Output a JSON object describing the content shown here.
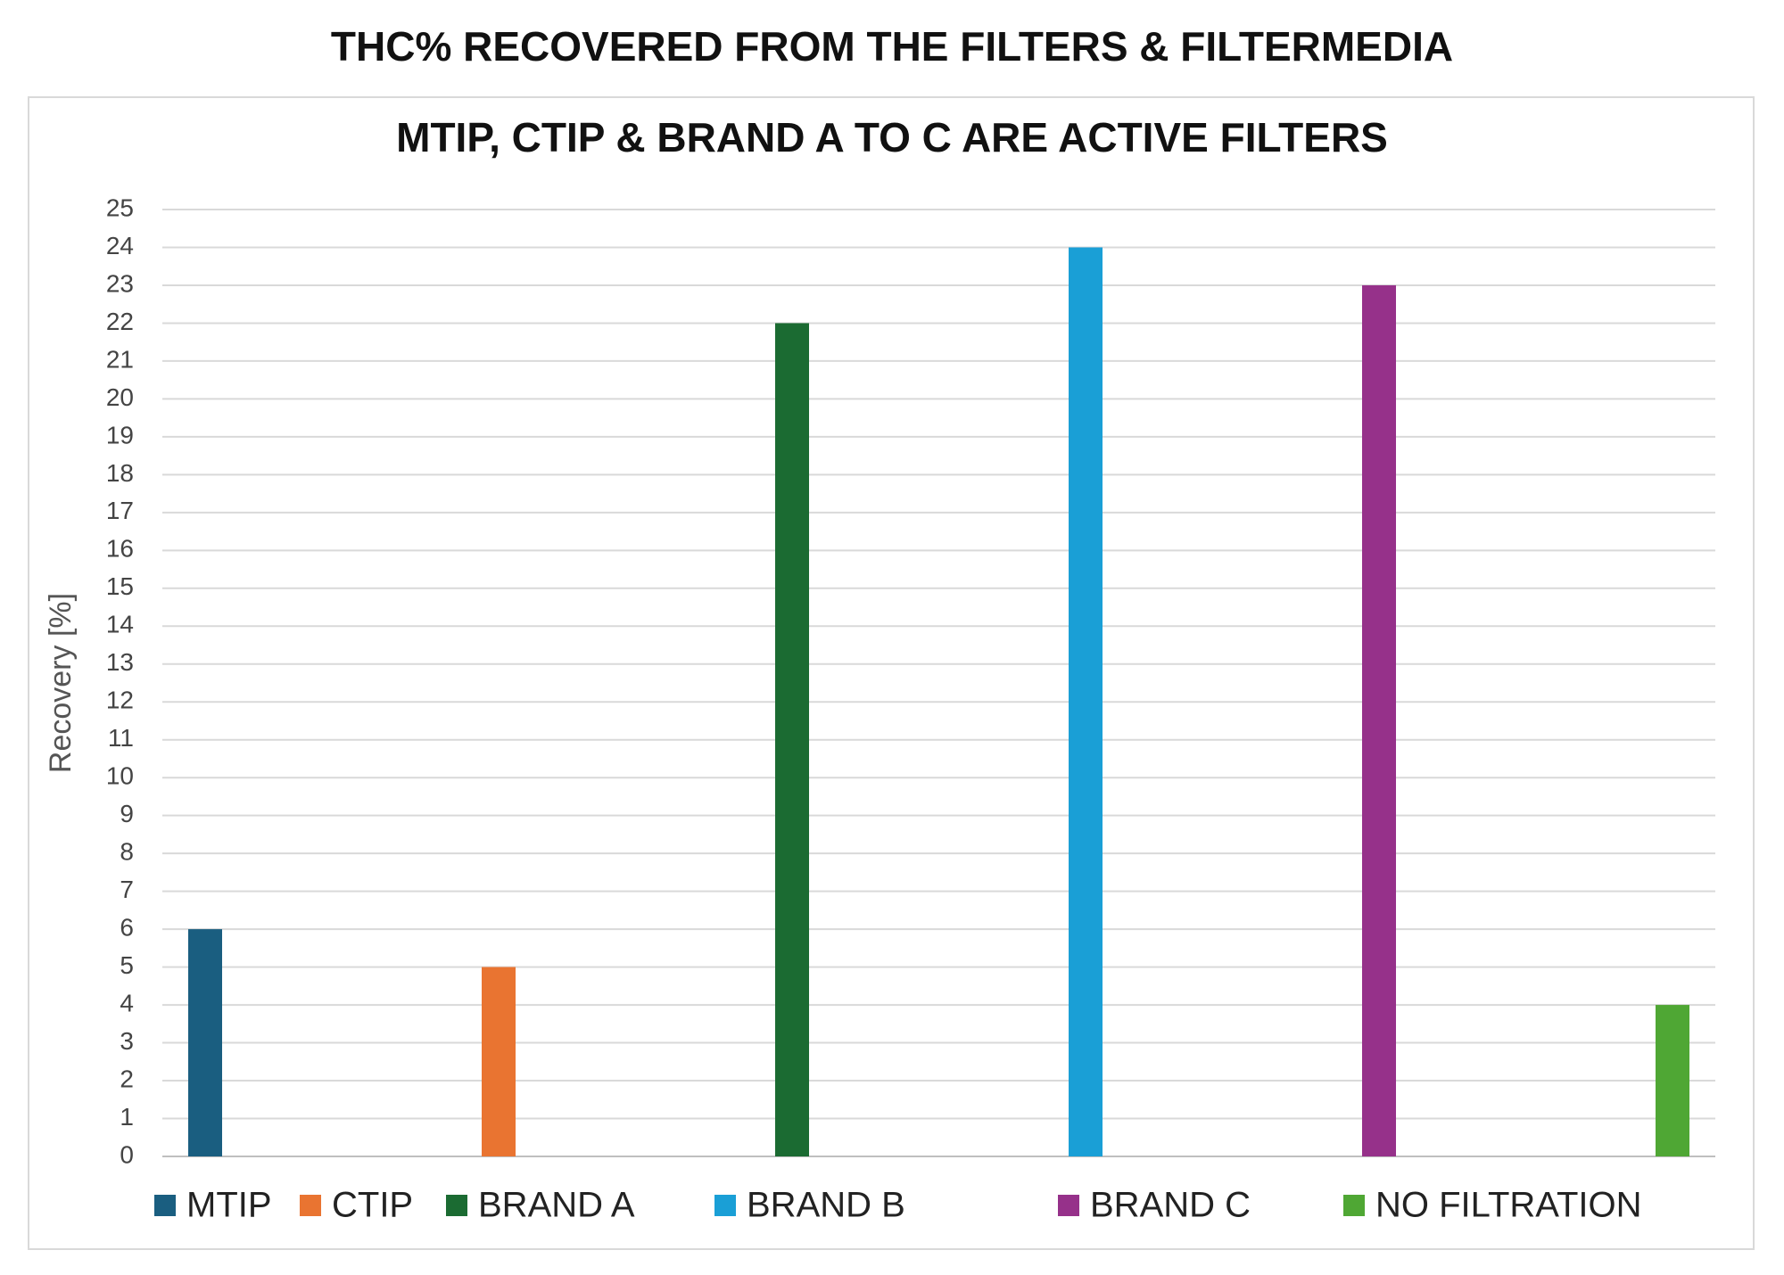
{
  "chart_data": {
    "type": "bar",
    "title": "THC% RECOVERED FROM THE FILTERS & FILTERMEDIA",
    "subtitle": "MTIP, CTIP & BRAND A TO C ARE ACTIVE FILTERS",
    "y_label": "Recovery [%]",
    "series": [
      {
        "name": "MTIP",
        "color": "#1a5e80",
        "values": [
          6
        ]
      },
      {
        "name": "CTIP",
        "color": "#e97431",
        "values": [
          5
        ]
      },
      {
        "name": "BRAND A",
        "color": "#1b6b32",
        "values": [
          22
        ]
      },
      {
        "name": "BRAND B",
        "color": "#1a9fd6",
        "values": [
          24
        ]
      },
      {
        "name": "BRAND C",
        "color": "#96318a",
        "values": [
          23
        ]
      },
      {
        "name": "NO FILTRATION",
        "color": "#4fa734",
        "values": [
          4
        ]
      }
    ],
    "ylim": [
      0,
      25
    ],
    "yticks": [
      0,
      1,
      2,
      3,
      4,
      5,
      6,
      7,
      8,
      9,
      10,
      11,
      12,
      13,
      14,
      15,
      16,
      17,
      18,
      19,
      20,
      21,
      22,
      23,
      24,
      25
    ],
    "grid": true
  }
}
